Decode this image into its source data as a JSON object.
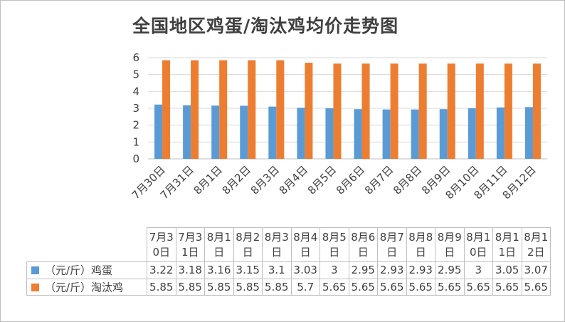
{
  "title": "全国地区鸡蛋/淘汰鸡均价走势图",
  "colors": {
    "egg": "#5b9bd5",
    "hen": "#ed7d31",
    "grid": "#d9d9d9",
    "text": "#404040"
  },
  "chart_data": {
    "type": "bar",
    "title": "全国地区鸡蛋/淘汰鸡均价走势图",
    "categories": [
      "7月30日",
      "7月31日",
      "8月1日",
      "8月2日",
      "8月3日",
      "8月4日",
      "8月5日",
      "8月6日",
      "8月7日",
      "8月8日",
      "8月9日",
      "8月10日",
      "8月11日",
      "8月12日"
    ],
    "series": [
      {
        "name": "（元/斤）鸡蛋",
        "values": [
          3.22,
          3.18,
          3.16,
          3.15,
          3.1,
          3.03,
          3,
          2.95,
          2.93,
          2.93,
          2.95,
          3,
          3.05,
          3.07
        ]
      },
      {
        "name": "（元/斤）淘汰鸡",
        "values": [
          5.85,
          5.85,
          5.85,
          5.85,
          5.85,
          5.7,
          5.65,
          5.65,
          5.65,
          5.65,
          5.65,
          5.65,
          5.65,
          5.65
        ]
      }
    ],
    "table_headers": [
      "7月30日",
      "7月31日",
      "8月1日",
      "8月2日",
      "8月3日",
      "8月4日",
      "8月5日",
      "8月6日",
      "8月7日",
      "8月8日",
      "8月9日",
      "8月10日",
      "8月11日",
      "8月12日"
    ],
    "table_rows": [
      [
        "3.22",
        "3.18",
        "3.16",
        "3.15",
        "3.1",
        "3.03",
        "3",
        "2.95",
        "2.93",
        "2.93",
        "2.95",
        "3",
        "3.05",
        "3.07"
      ],
      [
        "5.85",
        "5.85",
        "5.85",
        "5.85",
        "5.85",
        "5.7",
        "5.65",
        "5.65",
        "5.65",
        "5.65",
        "5.65",
        "5.65",
        "5.65",
        "5.65"
      ]
    ],
    "y_ticks": [
      "0",
      "1",
      "2",
      "3",
      "4",
      "5",
      "6"
    ],
    "ylim": [
      0,
      6
    ],
    "grid": true,
    "legend": "data-table"
  }
}
